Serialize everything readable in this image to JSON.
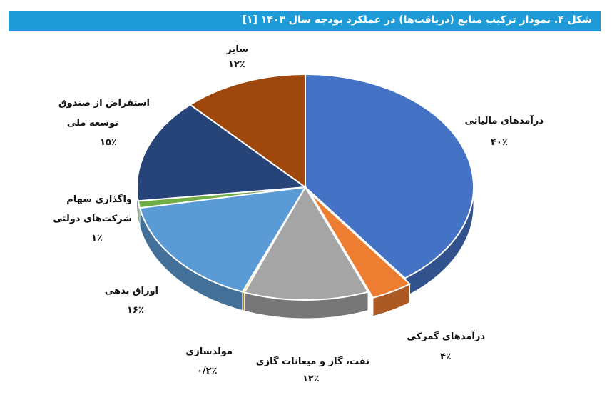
{
  "title": "شکل ۴. نمودار ترکیب منابع (دریافت‌ها) در عملکرد بودجه سال ۱۴۰۳ [۱]",
  "chart_data": {
    "type": "pie",
    "title": "شکل ۴. نمودار ترکیب منابع (دریافت‌ها) در عملکرد بودجه سال ۱۴۰۳ [۱]",
    "slices": [
      {
        "label": "درآمدهای مالیاتی",
        "value": 40,
        "display": "۴۰٪",
        "color": "#4472c4"
      },
      {
        "label": "درآمدهای گمرکی",
        "value": 4,
        "display": "۴٪",
        "color": "#ed7d31"
      },
      {
        "label": "نفت، گاز و میعانات گازی",
        "value": 12,
        "display": "۱۲٪",
        "color": "#a5a5a5"
      },
      {
        "label": "مولدسازی",
        "value": 0.2,
        "display": "۰/۲٪",
        "color": "#ffc000"
      },
      {
        "label": "اوراق بدهی",
        "value": 16,
        "display": "۱۶٪",
        "color": "#5b9bd5"
      },
      {
        "label": "واگذاری سهام شرکت‌های دولتی",
        "value": 1,
        "display": "۱٪",
        "color": "#70ad47"
      },
      {
        "label": "استقراض از صندوق توسعه ملی",
        "value": 15,
        "display": "۱۵٪",
        "color": "#264478"
      },
      {
        "label": "سایر",
        "value": 12,
        "display": "۱۲٪",
        "color": "#9e480e"
      }
    ]
  },
  "labels": {
    "tax": {
      "l1": "درآمدهای مالیاتی",
      "pct": "۴۰٪"
    },
    "customs": {
      "l1": "درآمدهای گمرکی",
      "pct": "۴٪"
    },
    "oil": {
      "l1": "نفت، گاز و میعانات گازی",
      "pct": "۱۲٪"
    },
    "prod": {
      "l1": "مولدسازی",
      "pct": "۰/۲٪"
    },
    "bonds": {
      "l1": "اوراق بدهی",
      "pct": "۱۶٪"
    },
    "shares": {
      "l1": "واگذاری سهام",
      "l2": "شرکت‌های دولتی",
      "pct": "۱٪"
    },
    "ndf": {
      "l1": "استقراض از صندوق",
      "l2": "توسعه ملی",
      "pct": "۱۵٪"
    },
    "other": {
      "l1": "سایر",
      "pct": "۱۲٪"
    }
  }
}
